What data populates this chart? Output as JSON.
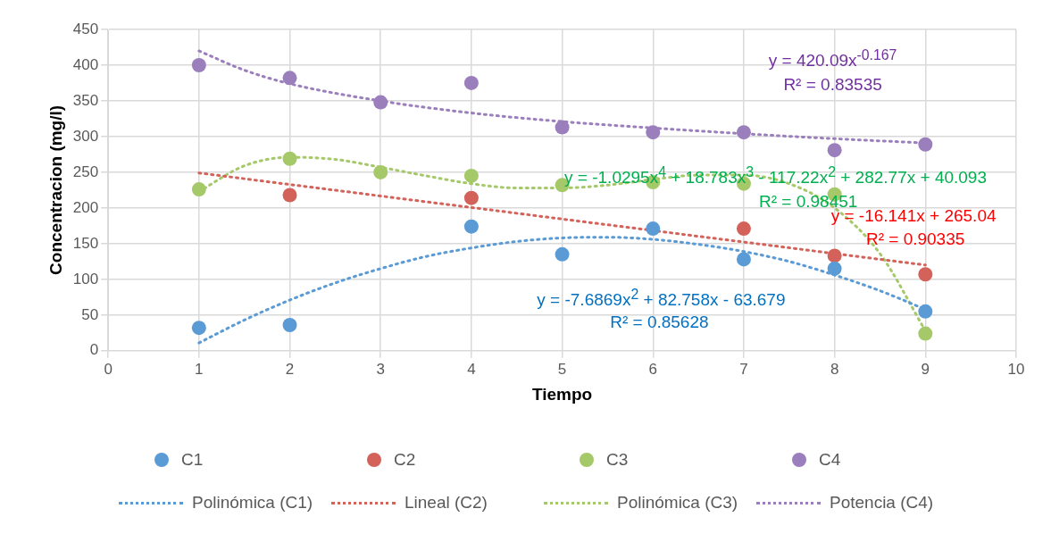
{
  "chart_data": {
    "type": "scatter",
    "xlabel": "Tiempo",
    "ylabel": "Concentracion (mg/l)",
    "xlim": [
      0,
      10
    ],
    "xticks": [
      0,
      1,
      2,
      3,
      4,
      5,
      6,
      7,
      8,
      9,
      10
    ],
    "ylim": [
      0,
      450
    ],
    "yticks": [
      0,
      50,
      100,
      150,
      200,
      250,
      300,
      350,
      400,
      450
    ],
    "grid": true,
    "legend": "bottom",
    "series": [
      {
        "name": "C1",
        "type": "scatter",
        "marker": "circle",
        "color": "#5b9bd5",
        "x": [
          1,
          2,
          4,
          5,
          6,
          7,
          8,
          9
        ],
        "values": [
          32,
          36,
          174,
          135,
          171,
          128,
          115,
          55
        ]
      },
      {
        "name": "C2",
        "type": "scatter",
        "marker": "circle",
        "color": "#d3625a",
        "x": [
          2,
          4,
          7,
          8,
          9
        ],
        "values": [
          218,
          214,
          171,
          133,
          107
        ]
      },
      {
        "name": "C3",
        "type": "scatter",
        "marker": "circle",
        "color": "#a5c869",
        "x": [
          1,
          2,
          3,
          4,
          5,
          6,
          7,
          8,
          9
        ],
        "values": [
          226,
          269,
          250,
          245,
          232,
          236,
          234,
          219,
          24
        ]
      },
      {
        "name": "C4",
        "type": "scatter",
        "marker": "circle",
        "color": "#9b7fbd",
        "x": [
          1,
          2,
          3,
          4,
          5,
          6,
          7,
          8,
          9
        ],
        "values": [
          400,
          382,
          348,
          375,
          313,
          306,
          306,
          281,
          289
        ]
      },
      {
        "name": "Polinómica (C1)",
        "type": "line",
        "marker": "none",
        "line_style": "dotted",
        "color": "#5b9bd5",
        "x": [
          1,
          1.5,
          2,
          2.5,
          3,
          3.5,
          4,
          4.5,
          5,
          5.5,
          6,
          6.5,
          7,
          7.5,
          8,
          8.5,
          9
        ],
        "values": [
          11,
          43,
          71,
          95,
          115,
          132,
          144,
          153,
          158,
          159,
          156,
          149,
          139,
          125,
          106,
          84,
          58
        ]
      },
      {
        "name": "Lineal (C2)",
        "type": "line",
        "marker": "none",
        "line_style": "dotted",
        "color": "#d3625a",
        "x": [
          1,
          9
        ],
        "values": [
          249,
          120
        ]
      },
      {
        "name": "Polinómica (C3)",
        "type": "line",
        "marker": "none",
        "line_style": "dotted",
        "color": "#a5c869",
        "x": [
          1,
          1.5,
          2,
          2.5,
          3,
          3.5,
          4,
          4.5,
          5,
          5.5,
          6,
          6.5,
          7,
          7.5,
          8,
          8.5,
          9
        ],
        "values": [
          223,
          259,
          271,
          268,
          257,
          245,
          234,
          228,
          228,
          232,
          240,
          246,
          246,
          234,
          200,
          136,
          28
        ]
      },
      {
        "name": "Potencia (C4)",
        "type": "line",
        "marker": "none",
        "line_style": "dotted",
        "color": "#9b7fbd",
        "x": [
          1,
          1.5,
          2,
          3,
          4,
          5,
          6,
          7,
          8,
          9
        ],
        "values": [
          420,
          393,
          374,
          350,
          333,
          321,
          312,
          304,
          297,
          291
        ]
      }
    ],
    "annotations": [
      "y = 420.09x$^{-0.167}$",
      "R² = 0.83535",
      "y = -1.0295x$^{4}$ + 18.783x$^{3}$ - 117.22x$^{2}$ + 282.77x + 40.093",
      "R² = 0.98451",
      "y = -16.141x + 265.04",
      "R² = 0.90335",
      "y = -7.6869x$^{2}$ + 82.758x - 63.679",
      "R² = 0.85628"
    ]
  }
}
